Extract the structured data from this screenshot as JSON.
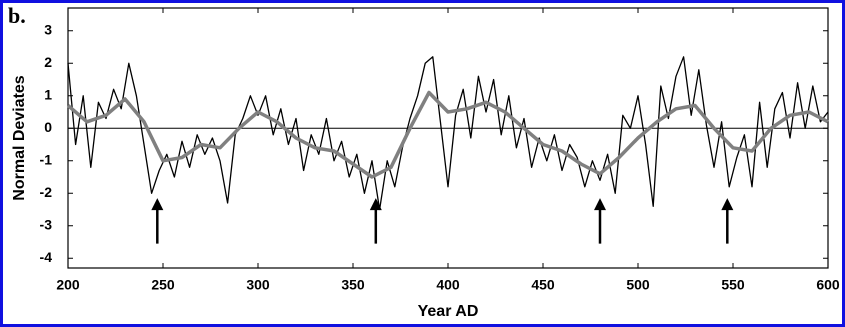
{
  "chart_data": {
    "type": "line",
    "panel_label": "b.",
    "xlabel": "Year AD",
    "ylabel": "Normal Deviates",
    "xlim": [
      200,
      600
    ],
    "ylim": [
      -4.3,
      3.7
    ],
    "xticks": [
      200,
      250,
      300,
      350,
      400,
      450,
      500,
      550,
      600
    ],
    "yticks": [
      -4,
      -3,
      -2,
      -1,
      0,
      1,
      2,
      3
    ],
    "reference_line": 0,
    "arrows_x": [
      247,
      362,
      480,
      547
    ],
    "series": [
      {
        "color": "#000000",
        "x": [
          200,
          204,
          208,
          212,
          216,
          220,
          224,
          228,
          232,
          236,
          240,
          244,
          248,
          252,
          256,
          260,
          264,
          268,
          272,
          276,
          280,
          284,
          288,
          292,
          296,
          300,
          304,
          308,
          312,
          316,
          320,
          324,
          328,
          332,
          336,
          340,
          344,
          348,
          352,
          356,
          360,
          364,
          368,
          372,
          376,
          380,
          384,
          388,
          392,
          396,
          400,
          404,
          408,
          412,
          416,
          420,
          424,
          428,
          432,
          436,
          440,
          444,
          448,
          452,
          456,
          460,
          464,
          468,
          472,
          476,
          480,
          484,
          488,
          492,
          496,
          500,
          504,
          508,
          512,
          516,
          520,
          524,
          528,
          532,
          536,
          540,
          544,
          548,
          552,
          556,
          560,
          564,
          568,
          572,
          576,
          580,
          584,
          588,
          592,
          596,
          600
        ],
        "values": [
          2.0,
          -0.5,
          1.0,
          -1.2,
          0.8,
          0.3,
          1.2,
          0.6,
          2.0,
          1.0,
          -0.5,
          -2.0,
          -1.3,
          -0.8,
          -1.5,
          -0.4,
          -1.2,
          -0.2,
          -0.8,
          -0.3,
          -1.0,
          -2.3,
          -0.2,
          0.3,
          1.0,
          0.4,
          1.0,
          -0.2,
          0.6,
          -0.5,
          0.3,
          -1.3,
          -0.2,
          -0.8,
          0.3,
          -1.0,
          -0.4,
          -1.5,
          -0.8,
          -2.0,
          -1.0,
          -2.5,
          -1.0,
          -1.8,
          -0.6,
          0.3,
          1.0,
          2.0,
          2.2,
          0.2,
          -1.8,
          0.4,
          1.2,
          -0.3,
          1.6,
          0.5,
          1.5,
          -0.2,
          1.0,
          -0.6,
          0.3,
          -1.2,
          -0.3,
          -1.0,
          -0.2,
          -1.3,
          -0.5,
          -0.9,
          -1.8,
          -1.0,
          -1.6,
          -0.8,
          -2.0,
          0.4,
          0.0,
          1.0,
          -0.5,
          -2.4,
          1.3,
          0.3,
          1.6,
          2.2,
          0.4,
          1.8,
          0.1,
          -1.2,
          0.2,
          -1.8,
          -0.9,
          -0.2,
          -1.8,
          0.8,
          -1.2,
          0.6,
          1.1,
          -0.3,
          1.4,
          0.0,
          1.3,
          0.2,
          0.5
        ]
      },
      {
        "color": "#808080",
        "x": [
          200,
          210,
          220,
          230,
          240,
          250,
          260,
          270,
          280,
          290,
          300,
          310,
          320,
          330,
          340,
          350,
          360,
          370,
          380,
          390,
          400,
          410,
          420,
          430,
          440,
          450,
          460,
          470,
          480,
          490,
          500,
          510,
          520,
          530,
          540,
          550,
          560,
          570,
          580,
          590,
          600
        ],
        "values": [
          0.7,
          0.2,
          0.4,
          0.9,
          0.2,
          -1.0,
          -0.9,
          -0.5,
          -0.6,
          0.0,
          0.5,
          0.2,
          -0.3,
          -0.6,
          -0.7,
          -1.1,
          -1.5,
          -1.2,
          0.0,
          1.1,
          0.5,
          0.6,
          0.8,
          0.5,
          0.0,
          -0.5,
          -0.7,
          -1.1,
          -1.4,
          -0.9,
          -0.3,
          0.2,
          0.6,
          0.7,
          0.0,
          -0.6,
          -0.7,
          0.0,
          0.4,
          0.5,
          0.2
        ]
      }
    ]
  }
}
